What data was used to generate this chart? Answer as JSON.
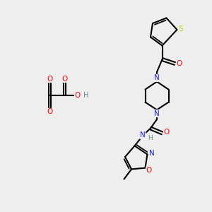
{
  "bg_color": "#eeeeee",
  "atom_colors": {
    "C": "#000000",
    "N": "#1a1aff",
    "O": "#ff0000",
    "S": "#cccc00",
    "H": "#5a9090"
  },
  "bond_color": "#000000",
  "bond_width": 1.5
}
